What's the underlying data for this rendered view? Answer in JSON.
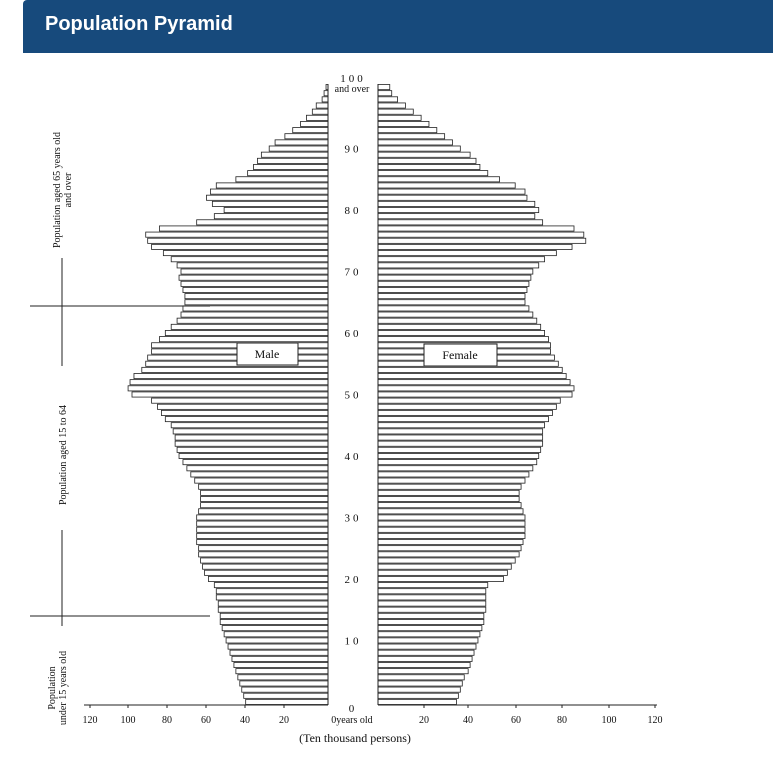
{
  "header": {
    "title": "Population Pyramid"
  },
  "chart_data": {
    "type": "bar",
    "orientation": "horizontal-pyramid",
    "title": "Population Pyramid",
    "xlabel": "(Ten thousand persons)",
    "xlim": [
      0,
      120
    ],
    "x_ticks": [
      "120",
      "100",
      "80",
      "60",
      "40",
      "20",
      "0years old",
      "20",
      "40",
      "60",
      "80",
      "100",
      "120"
    ],
    "age_ticks": [
      "100",
      "90",
      "80",
      "70",
      "60",
      "50",
      "40",
      "30",
      "20",
      "10",
      "0"
    ],
    "top_label": "and over",
    "legend": {
      "male": "Male",
      "female": "Female"
    },
    "side_labels": {
      "old": [
        "Population aged 65 years old",
        "and over"
      ],
      "working": [
        "Population aged 15 to 64"
      ],
      "young": [
        "Population",
        "under 15 years old"
      ]
    },
    "ages": [
      0,
      1,
      2,
      3,
      4,
      5,
      6,
      7,
      8,
      9,
      10,
      11,
      12,
      13,
      14,
      15,
      16,
      17,
      18,
      19,
      20,
      21,
      22,
      23,
      24,
      25,
      26,
      27,
      28,
      29,
      30,
      31,
      32,
      33,
      34,
      35,
      36,
      37,
      38,
      39,
      40,
      41,
      42,
      43,
      44,
      45,
      46,
      47,
      48,
      49,
      50,
      51,
      52,
      53,
      54,
      55,
      56,
      57,
      58,
      59,
      60,
      61,
      62,
      63,
      64,
      65,
      66,
      67,
      68,
      69,
      70,
      71,
      72,
      73,
      74,
      75,
      76,
      77,
      78,
      79,
      80,
      81,
      82,
      83,
      84,
      85,
      86,
      87,
      88,
      89,
      90,
      91,
      92,
      93,
      94,
      95,
      96,
      97,
      98,
      99,
      100
    ],
    "series": [
      {
        "name": "Male",
        "values": [
          42,
          43,
          44,
          45,
          46,
          47,
          48,
          49,
          50,
          51,
          52,
          53,
          54,
          55,
          55,
          56,
          56,
          57,
          57,
          58,
          61,
          63,
          64,
          65,
          66,
          66,
          67,
          67,
          67,
          67,
          67,
          66,
          65,
          65,
          65,
          66,
          68,
          70,
          72,
          74,
          76,
          77,
          78,
          78,
          79,
          80,
          83,
          85,
          87,
          90,
          100,
          102,
          101,
          99,
          95,
          93,
          92,
          90,
          90,
          86,
          83,
          80,
          77,
          75,
          74,
          73,
          73,
          74,
          75,
          76,
          75,
          77,
          80,
          84,
          90,
          92,
          93,
          86,
          67,
          58,
          53,
          59,
          62,
          60,
          57,
          47,
          41,
          38,
          36,
          34,
          30,
          27,
          22,
          18,
          14,
          11,
          8,
          6,
          3,
          2,
          1
        ]
      },
      {
        "name": "Female",
        "values": [
          40,
          41,
          42,
          43,
          44,
          46,
          47,
          48,
          49,
          50,
          51,
          52,
          53,
          54,
          54,
          55,
          55,
          55,
          55,
          56,
          64,
          66,
          68,
          70,
          72,
          73,
          74,
          75,
          75,
          75,
          75,
          74,
          73,
          72,
          72,
          73,
          75,
          77,
          79,
          81,
          82,
          83,
          84,
          84,
          84,
          85,
          87,
          89,
          91,
          93,
          99,
          100,
          98,
          96,
          94,
          92,
          90,
          88,
          88,
          87,
          85,
          83,
          81,
          79,
          77,
          75,
          75,
          76,
          77,
          78,
          79,
          82,
          85,
          91,
          99,
          106,
          105,
          100,
          84,
          80,
          82,
          80,
          76,
          75,
          70,
          62,
          56,
          52,
          50,
          47,
          42,
          38,
          34,
          30,
          26,
          22,
          18,
          14,
          10,
          7,
          6
        ]
      }
    ],
    "colors": {
      "bar_fill": "#ffffff",
      "bar_stroke": "#222222"
    }
  }
}
